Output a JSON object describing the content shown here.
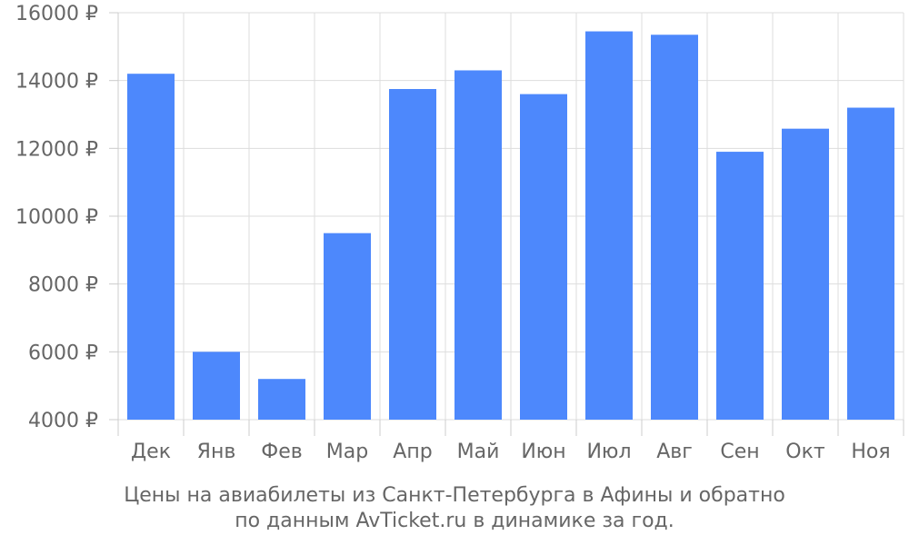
{
  "chart_data": {
    "type": "bar",
    "categories": [
      "Дек",
      "Янв",
      "Фев",
      "Мар",
      "Апр",
      "Май",
      "Июн",
      "Июл",
      "Авг",
      "Сен",
      "Окт",
      "Ноя"
    ],
    "values": [
      14200,
      6000,
      5200,
      9500,
      13750,
      14300,
      13600,
      15450,
      15350,
      11900,
      12580,
      13200
    ],
    "ylim": [
      4000,
      16000
    ],
    "yticks": [
      4000,
      6000,
      8000,
      10000,
      12000,
      14000,
      16000
    ],
    "currency_symbol": "₽",
    "grid": true,
    "bar_color": "#4d88fc",
    "title_lines": [
      "Цены на авиабилеты из Санкт-Петербурга в Афины и обратно",
      "по данным AvTicket.ru в динамике за год."
    ]
  }
}
